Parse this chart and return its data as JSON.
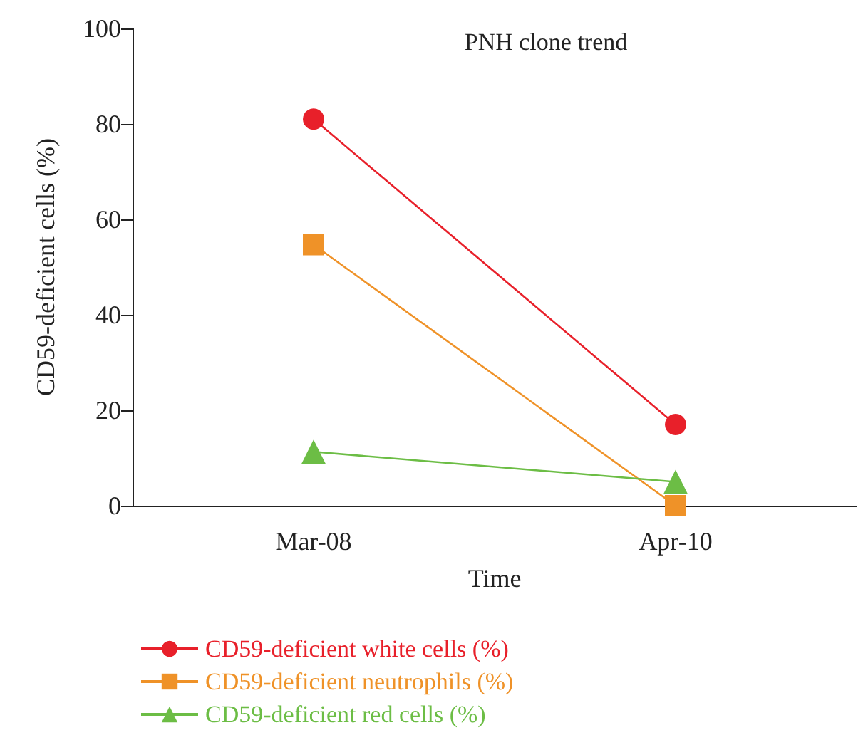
{
  "chart_data": {
    "type": "line",
    "title": "PNH clone trend",
    "xlabel": "Time",
    "ylabel": "CD59-deficient cells (%)",
    "categories": [
      "Mar-08",
      "Apr-10"
    ],
    "ylim": [
      0,
      100
    ],
    "yticks": [
      0,
      20,
      40,
      60,
      80,
      100
    ],
    "grid": false,
    "legend": "bottom",
    "series": [
      {
        "name": "CD59-deficient white cells (%)",
        "color": "#e8202a",
        "marker": "circle",
        "values": [
          81,
          17
        ]
      },
      {
        "name": "CD59-deficient neutrophils (%)",
        "color": "#ef9228",
        "marker": "square",
        "values": [
          54.7,
          0
        ]
      },
      {
        "name": "CD59-deficient red cells (%)",
        "color": "#6cbd45",
        "marker": "triangle",
        "values": [
          11.3,
          5
        ]
      }
    ]
  }
}
